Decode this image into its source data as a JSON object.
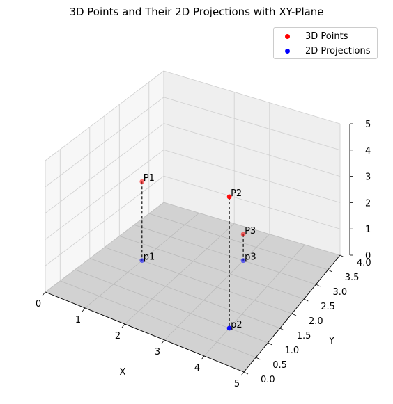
{
  "chart_data": {
    "type": "scatter",
    "title": "3D Points and Their 2D Projections with XY-Plane",
    "xlabel": "X",
    "ylabel": "Y",
    "zlabel": "",
    "xlim": [
      0,
      5
    ],
    "ylim": [
      0,
      4
    ],
    "zlim": [
      0,
      5
    ],
    "x_ticks": [
      "0",
      "1",
      "2",
      "3",
      "4",
      "5"
    ],
    "y_ticks": [
      "0.0",
      "0.5",
      "1.0",
      "1.5",
      "2.0",
      "2.5",
      "3.0",
      "3.5",
      "4.0"
    ],
    "z_ticks": [
      "0",
      "1",
      "2",
      "3",
      "4",
      "5"
    ],
    "grid": true,
    "legend_position": "top-right",
    "series": [
      {
        "name": "3D Points",
        "color": "#ff0000",
        "points": [
          {
            "label": "P1",
            "x": 1,
            "y": 2,
            "z": 3
          },
          {
            "label": "P2",
            "x": 4,
            "y": 1,
            "z": 5
          },
          {
            "label": "P3",
            "x": 3,
            "y": 3,
            "z": 1
          }
        ]
      },
      {
        "name": "2D Projections",
        "color": "#0000ff",
        "points": [
          {
            "label": "p1",
            "x": 1,
            "y": 2,
            "z": 0
          },
          {
            "label": "p2",
            "x": 4,
            "y": 1,
            "z": 0
          },
          {
            "label": "p3",
            "x": 3,
            "y": 3,
            "z": 0
          }
        ]
      }
    ],
    "projection_lines": "dashed black from each 3D point to its projection",
    "xy_plane": {
      "z": 0,
      "color": "#808080"
    }
  }
}
